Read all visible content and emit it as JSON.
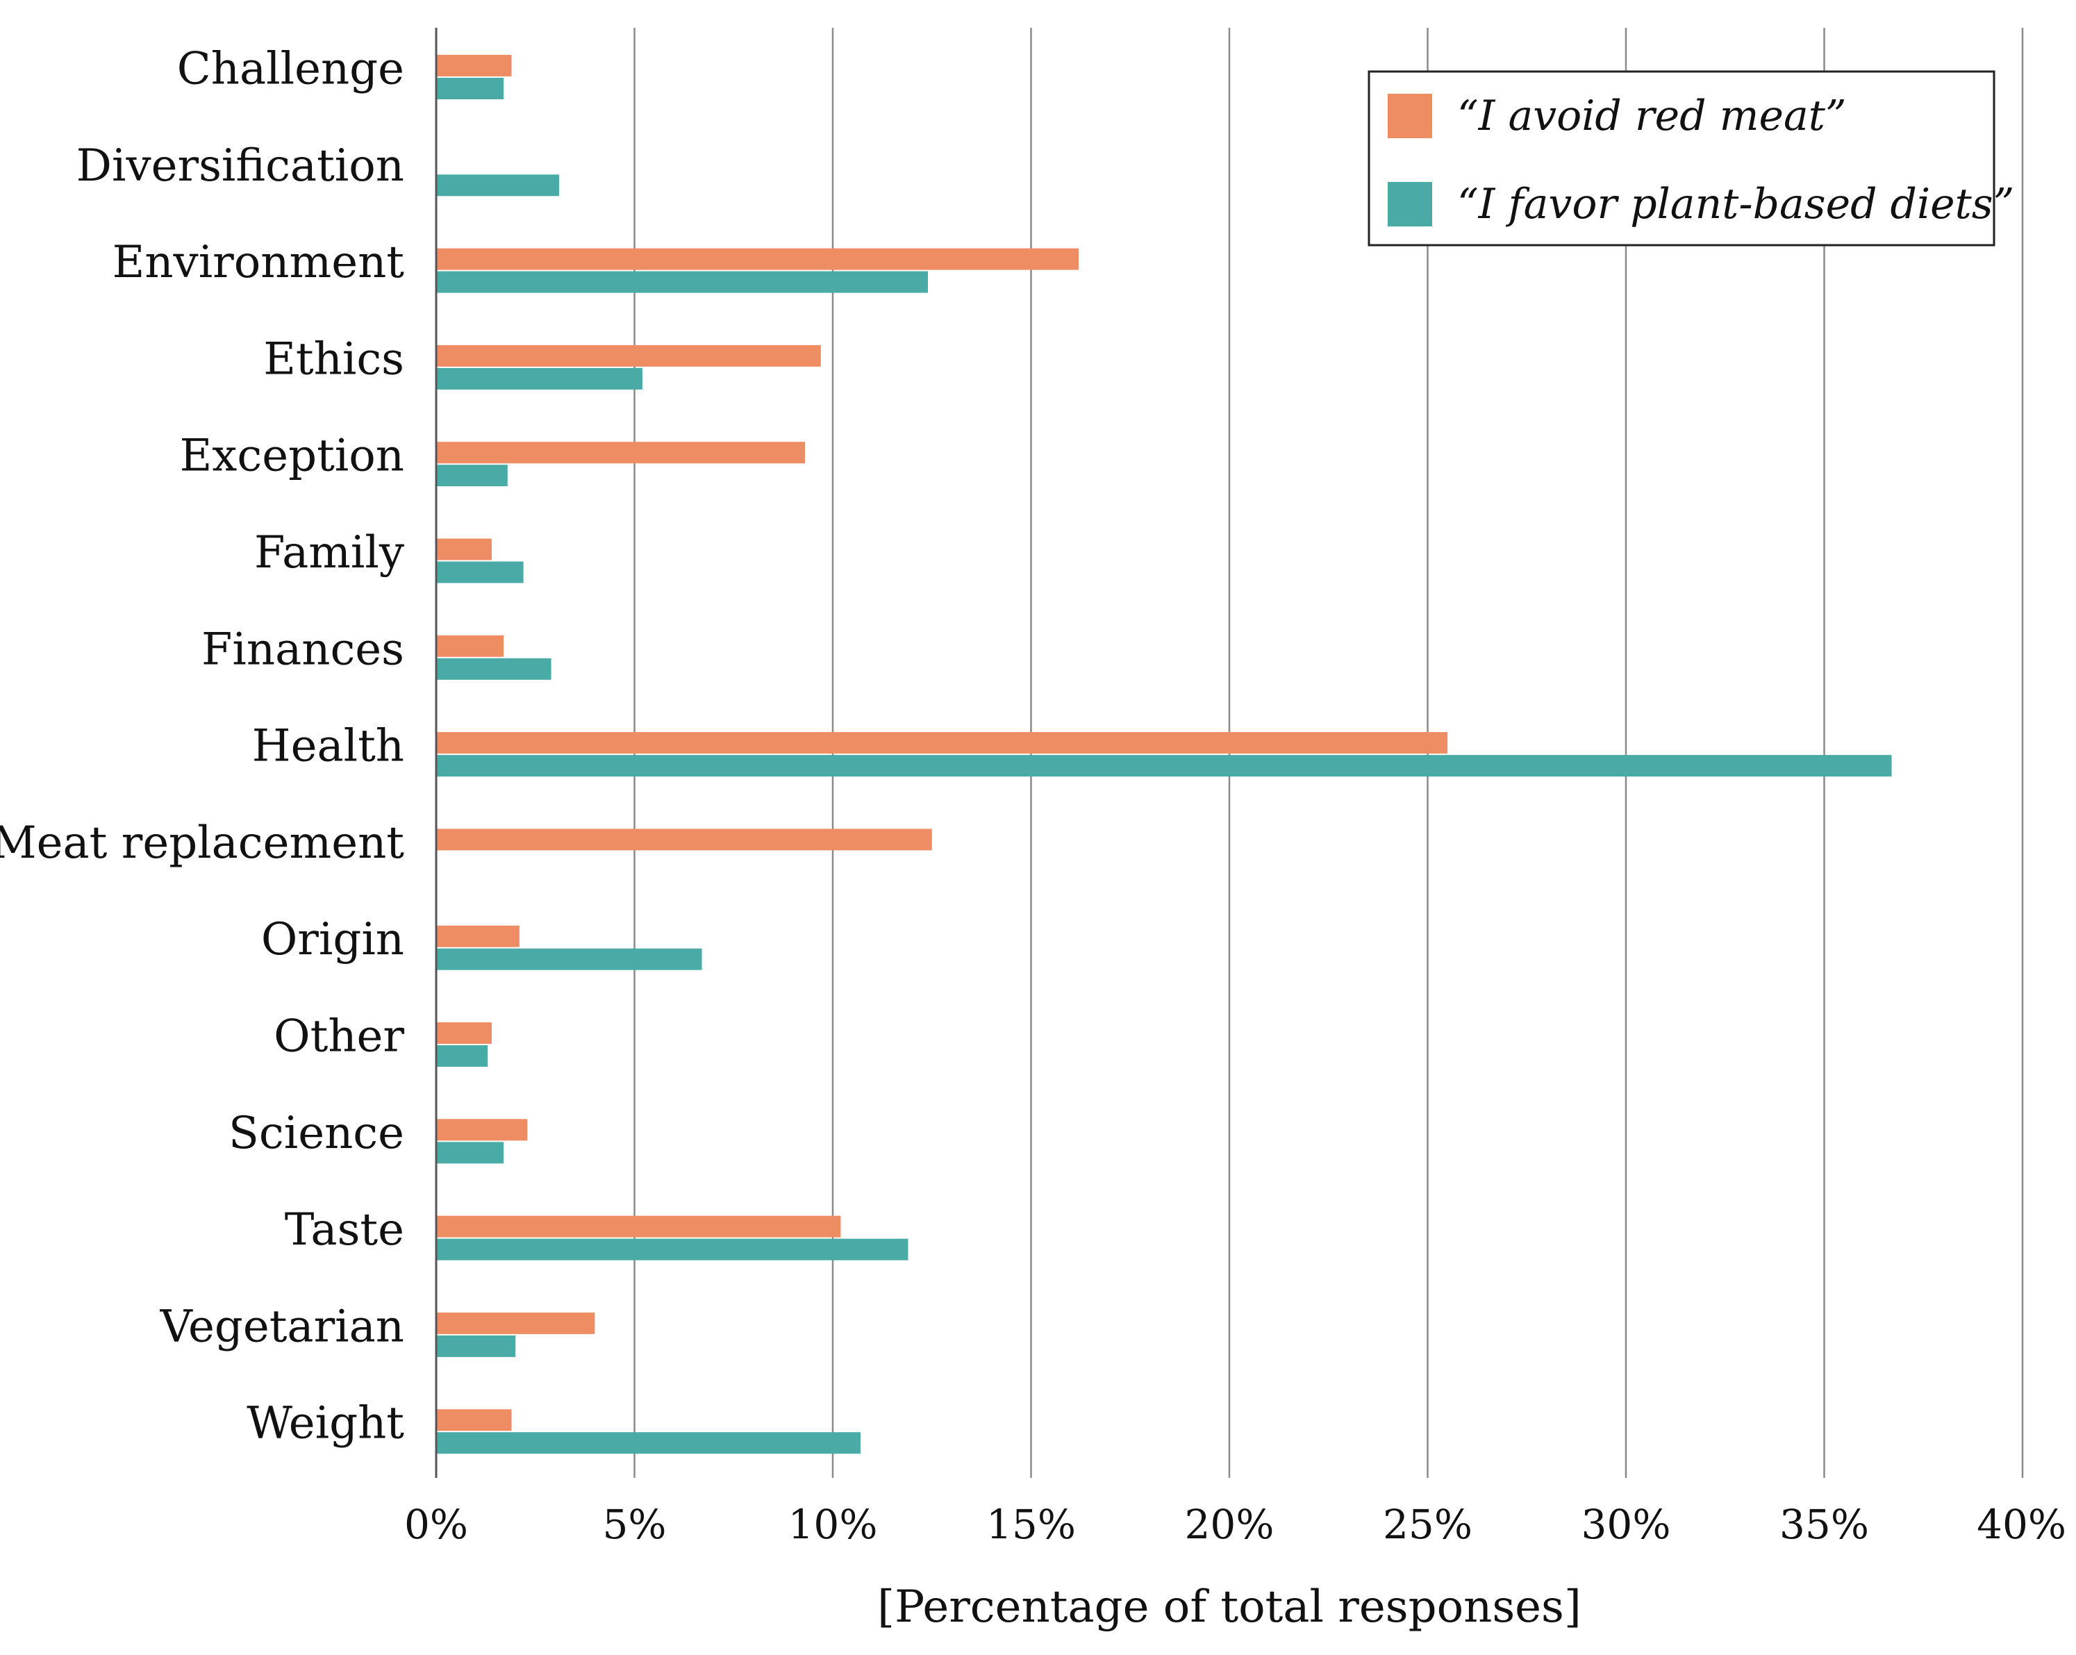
{
  "chart_data": {
    "type": "bar",
    "orientation": "horizontal",
    "categories": [
      "Challenge",
      "Diversification",
      "Environment",
      "Ethics",
      "Exception",
      "Family",
      "Finances",
      "Health",
      "Meat replacement",
      "Origin",
      "Other",
      "Science",
      "Taste",
      "Vegetarian",
      "Weight"
    ],
    "series": [
      {
        "name": "“I avoid red meat”",
        "color": "#EE8C63",
        "values": [
          1.9,
          0.0,
          16.2,
          9.7,
          9.3,
          1.4,
          1.7,
          25.5,
          12.5,
          2.1,
          1.4,
          2.3,
          10.2,
          4.0,
          1.9
        ]
      },
      {
        "name": "“I favor plant-based diets”",
        "color": "#4AAAA5",
        "values": [
          1.7,
          3.1,
          12.4,
          5.2,
          1.8,
          2.2,
          2.9,
          36.7,
          0.0,
          6.7,
          1.3,
          1.7,
          11.9,
          2.0,
          10.7
        ]
      }
    ],
    "xlim": [
      0,
      40
    ],
    "xticks": [
      0,
      5,
      10,
      15,
      20,
      25,
      30,
      35,
      40
    ],
    "xtick_labels": [
      "0%",
      "5%",
      "10%",
      "15%",
      "20%",
      "25%",
      "30%",
      "35%",
      "40%"
    ],
    "xlabel": "[Percentage of total responses]",
    "ylabel": "",
    "title": "",
    "grid": "vertical",
    "legend_position": "top-right"
  }
}
